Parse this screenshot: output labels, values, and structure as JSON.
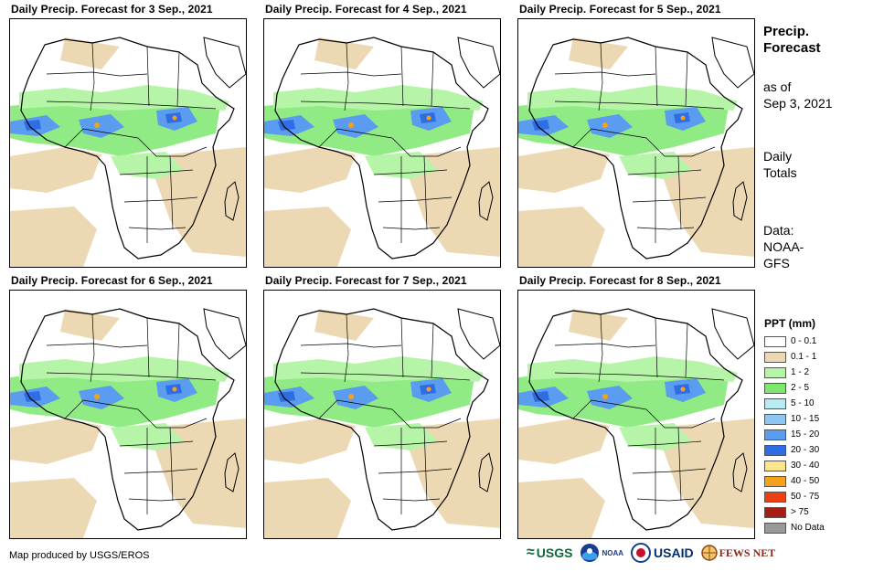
{
  "panels": [
    {
      "title": "Daily Precip. Forecast for 3 Sep., 2021"
    },
    {
      "title": "Daily Precip. Forecast for 4 Sep., 2021"
    },
    {
      "title": "Daily Precip. Forecast for 5 Sep., 2021"
    },
    {
      "title": "Daily Precip. Forecast for 6 Sep., 2021"
    },
    {
      "title": "Daily Precip. Forecast for 7 Sep., 2021"
    },
    {
      "title": "Daily Precip. Forecast for 8 Sep., 2021"
    }
  ],
  "sidebar": {
    "heading_line1": "Precip.",
    "heading_line2": "Forecast",
    "asof_line1": "as of",
    "asof_line2": "Sep 3, 2021",
    "totals_line1": "Daily",
    "totals_line2": "Totals",
    "source_line1": "Data:",
    "source_line2": "NOAA-",
    "source_line3": "GFS"
  },
  "legend": {
    "title": "PPT (mm)",
    "items": [
      {
        "label": "0 - 0.1",
        "color": "#ffffff"
      },
      {
        "label": "0.1 - 1",
        "color": "#ecd9b4"
      },
      {
        "label": "1 - 2",
        "color": "#b6f5a8"
      },
      {
        "label": "2 - 5",
        "color": "#7ee86e"
      },
      {
        "label": "5 - 10",
        "color": "#b8ecf4"
      },
      {
        "label": "10 - 15",
        "color": "#8ec6f2"
      },
      {
        "label": "15 - 20",
        "color": "#5a9cef"
      },
      {
        "label": "20 - 30",
        "color": "#2f6de4"
      },
      {
        "label": "30 - 40",
        "color": "#fbe58a"
      },
      {
        "label": "40 - 50",
        "color": "#f6a11a"
      },
      {
        "label": "50 - 75",
        "color": "#ee3f12"
      },
      {
        "label": "> 75",
        "color": "#a81c16"
      },
      {
        "label": "No Data",
        "color": "#999999"
      }
    ]
  },
  "footer": {
    "credit": "Map produced by USGS/EROS",
    "logo_usgs": "USGS",
    "logo_noaa": "NOAA",
    "logo_usaid": "USAID",
    "logo_fews": "FEWS NET"
  }
}
